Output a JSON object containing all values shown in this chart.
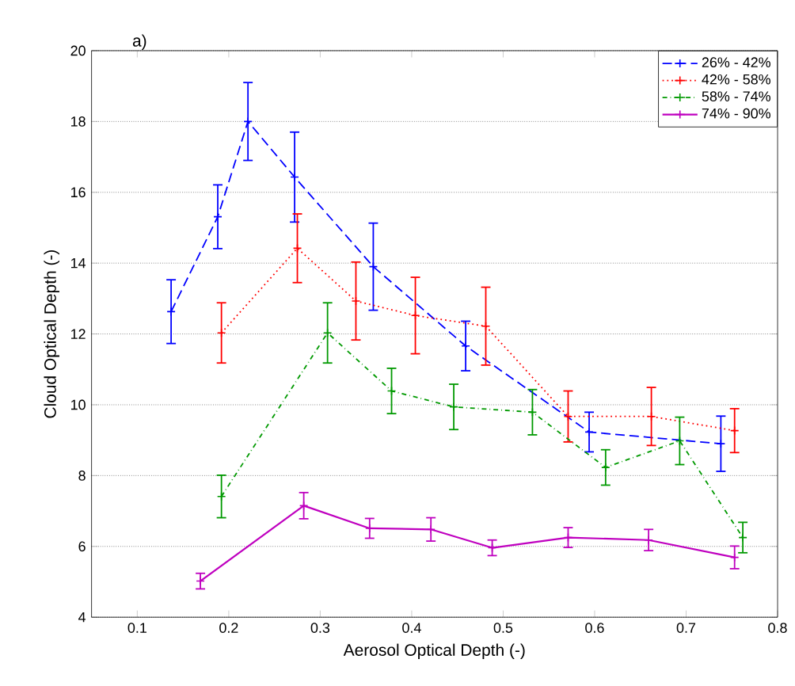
{
  "chart_data": {
    "type": "line",
    "xlabel": "Aerosol Optical Depth (-)",
    "ylabel": "Cloud Optical Depth (-)",
    "annotations": [
      "a)"
    ],
    "xlim": [
      0.05,
      0.8
    ],
    "ylim": [
      4,
      20
    ],
    "xticks": [
      0.1,
      0.2,
      0.3,
      0.4,
      0.5,
      0.6,
      0.7,
      0.8
    ],
    "yticks": [
      4,
      6,
      8,
      10,
      12,
      14,
      16,
      18,
      20
    ],
    "grid": "y",
    "legend": "top right",
    "marker": "cross",
    "series": [
      {
        "name": "26% - 42%",
        "color": "#0000ff",
        "line_style": "dashed",
        "x": [
          0.137,
          0.188,
          0.221,
          0.272,
          0.358,
          0.459,
          0.594,
          0.738
        ],
        "values": [
          12.63,
          15.31,
          18.0,
          16.43,
          13.9,
          11.66,
          9.23,
          8.9
        ],
        "errors": [
          0.9,
          0.9,
          1.1,
          1.27,
          1.23,
          0.7,
          0.56,
          0.78
        ]
      },
      {
        "name": "42% - 58%",
        "color": "#ff0000",
        "line_style": "dotted",
        "x": [
          0.192,
          0.275,
          0.339,
          0.404,
          0.481,
          0.571,
          0.662,
          0.753
        ],
        "values": [
          12.03,
          14.42,
          12.93,
          12.52,
          12.22,
          9.67,
          9.67,
          9.27
        ],
        "errors": [
          0.85,
          0.97,
          1.1,
          1.08,
          1.1,
          0.72,
          0.82,
          0.62
        ]
      },
      {
        "name": "58% - 74%",
        "color": "#009900",
        "line_style": "dashdot",
        "x": [
          0.192,
          0.308,
          0.378,
          0.446,
          0.532,
          0.612,
          0.693,
          0.762
        ],
        "values": [
          7.41,
          12.03,
          10.39,
          9.94,
          9.79,
          8.23,
          8.98,
          6.25
        ],
        "errors": [
          0.6,
          0.85,
          0.64,
          0.64,
          0.64,
          0.5,
          0.67,
          0.43
        ]
      },
      {
        "name": "74% - 90%",
        "color": "#bf00bf",
        "line_style": "solid",
        "x": [
          0.169,
          0.282,
          0.354,
          0.421,
          0.488,
          0.571,
          0.659,
          0.753
        ],
        "values": [
          5.02,
          7.15,
          6.51,
          6.48,
          5.96,
          6.25,
          6.18,
          5.69
        ],
        "errors": [
          0.22,
          0.37,
          0.28,
          0.33,
          0.22,
          0.28,
          0.3,
          0.32
        ]
      }
    ]
  }
}
